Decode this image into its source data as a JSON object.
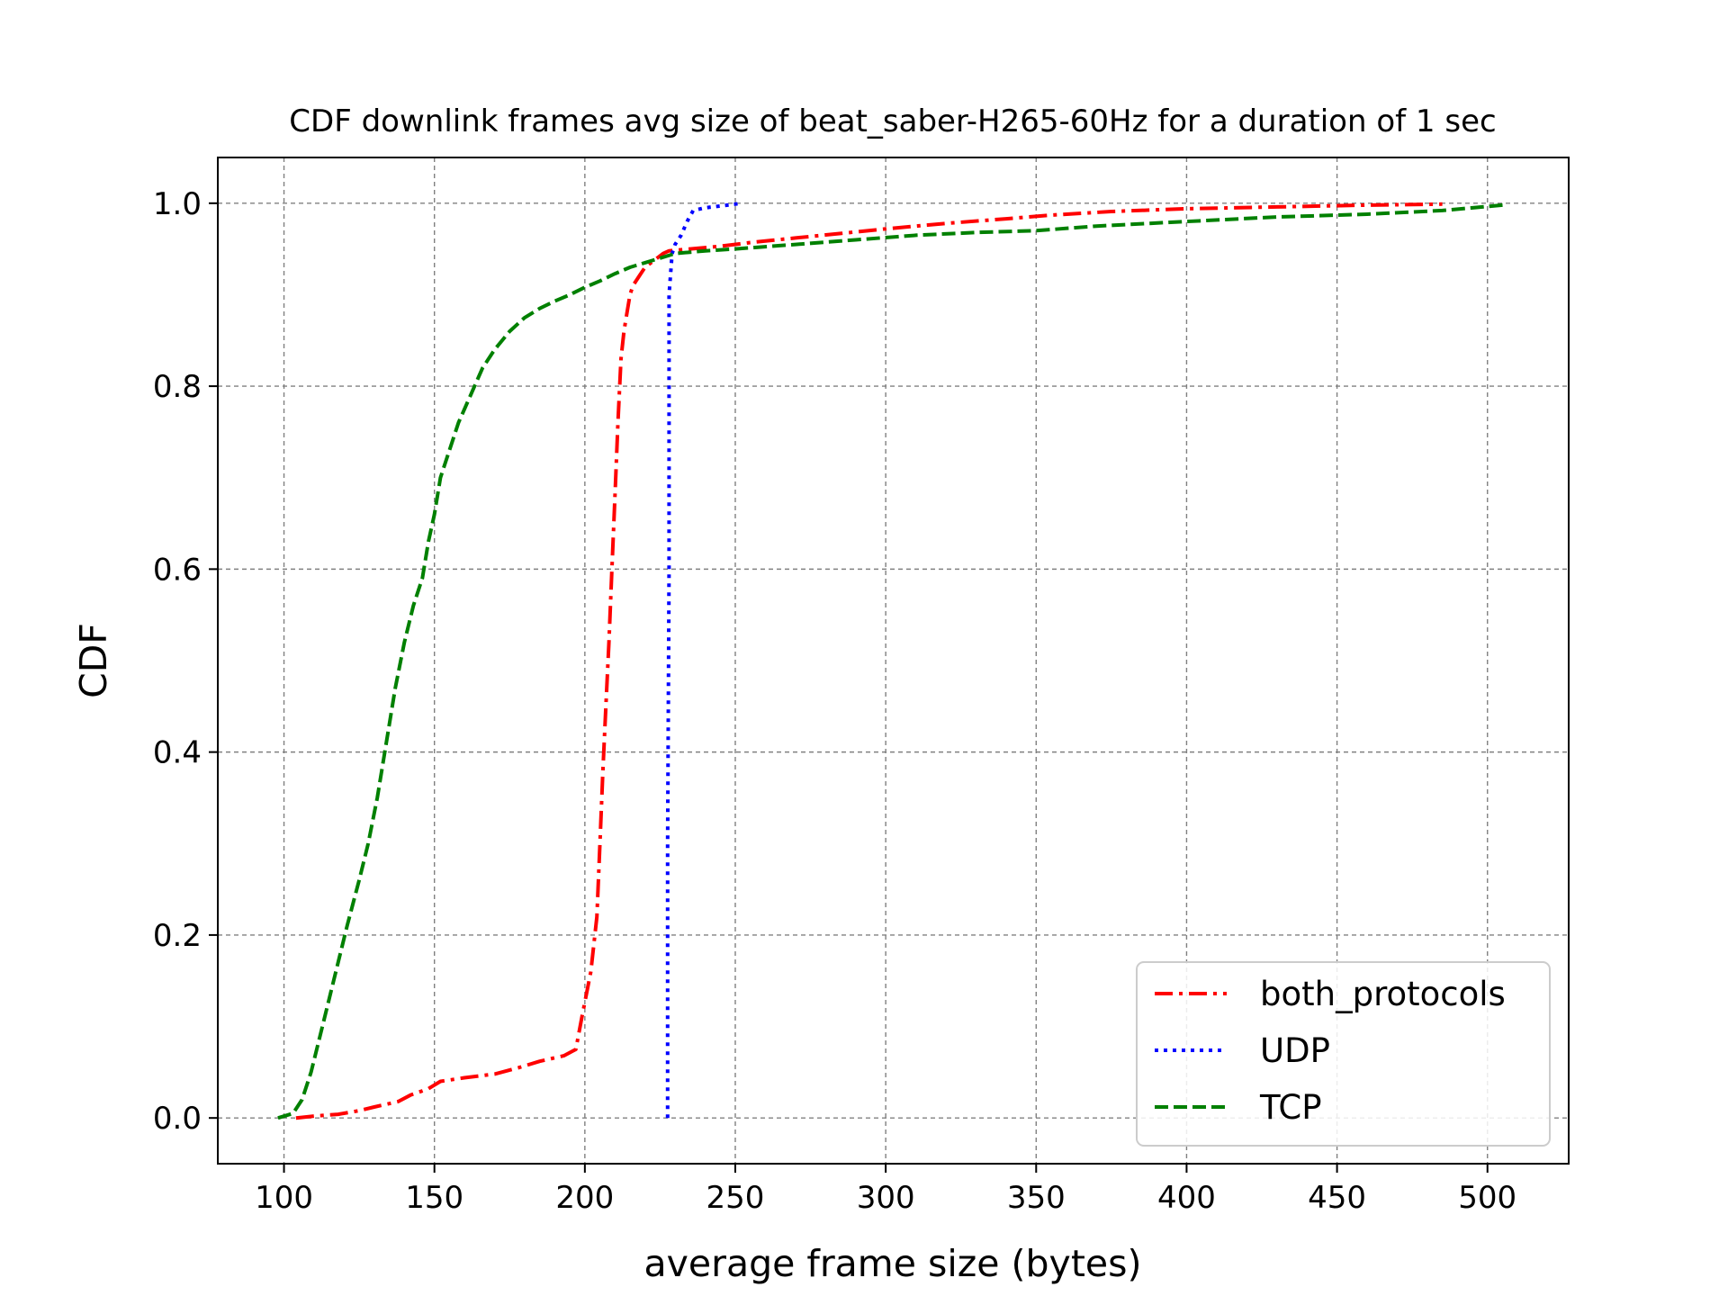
{
  "chart_data": {
    "type": "line",
    "title": "CDF downlink frames avg size of beat_saber-H265-60Hz for a duration of 1 sec",
    "xlabel": "average frame size (bytes)",
    "ylabel": "CDF",
    "xlim": [
      78,
      527
    ],
    "ylim": [
      -0.05,
      1.05
    ],
    "xticks": [
      100,
      150,
      200,
      250,
      300,
      350,
      400,
      450,
      500
    ],
    "yticks": [
      0.0,
      0.2,
      0.4,
      0.6,
      0.8,
      1.0
    ],
    "xtick_labels": [
      "100",
      "150",
      "200",
      "250",
      "300",
      "350",
      "400",
      "450",
      "500"
    ],
    "ytick_labels": [
      "0.0",
      "0.2",
      "0.4",
      "0.6",
      "0.8",
      "1.0"
    ],
    "grid": true,
    "legend_position": "bottom-right",
    "series": [
      {
        "name": "both_protocols",
        "color": "#ff0000",
        "style": "dashdot",
        "x": [
          104,
          110,
          118,
          125,
          130,
          138,
          142,
          148,
          152,
          160,
          170,
          178,
          185,
          193,
          197,
          199,
          202,
          204,
          205,
          206,
          207,
          208,
          209,
          210,
          211,
          212,
          213,
          214,
          215,
          216,
          218,
          220,
          222,
          224,
          226,
          228,
          235,
          245,
          255,
          270,
          285,
          300,
          320,
          340,
          355,
          375,
          400,
          430,
          460,
          485
        ],
        "y": [
          0.0,
          0.002,
          0.004,
          0.008,
          0.012,
          0.018,
          0.025,
          0.032,
          0.04,
          0.044,
          0.048,
          0.055,
          0.062,
          0.068,
          0.075,
          0.11,
          0.16,
          0.22,
          0.3,
          0.38,
          0.45,
          0.52,
          0.6,
          0.68,
          0.76,
          0.83,
          0.86,
          0.88,
          0.9,
          0.91,
          0.92,
          0.93,
          0.935,
          0.94,
          0.945,
          0.948,
          0.95,
          0.953,
          0.957,
          0.962,
          0.967,
          0.972,
          0.978,
          0.983,
          0.987,
          0.991,
          0.994,
          0.996,
          0.998,
          0.999
        ]
      },
      {
        "name": "UDP",
        "color": "#0000ff",
        "style": "dotted",
        "x": [
          227.5,
          227.5,
          228,
          228,
          229,
          230,
          232,
          234,
          236,
          240,
          245,
          250,
          252
        ],
        "y": [
          0.0,
          0.3,
          0.6,
          0.9,
          0.945,
          0.955,
          0.965,
          0.98,
          0.992,
          0.995,
          0.997,
          0.999,
          1.0
        ]
      },
      {
        "name": "TCP",
        "color": "#008000",
        "style": "dashed",
        "x": [
          98,
          103,
          106,
          109,
          112,
          115,
          118,
          121,
          125,
          128,
          131,
          134,
          137,
          140,
          143,
          146,
          148,
          150,
          152,
          155,
          158,
          162,
          166,
          170,
          175,
          180,
          185,
          190,
          195,
          200,
          205,
          210,
          215,
          220,
          225,
          230,
          240,
          250,
          270,
          290,
          310,
          330,
          350,
          370,
          400,
          430,
          460,
          485,
          505
        ],
        "y": [
          0.0,
          0.005,
          0.02,
          0.05,
          0.09,
          0.13,
          0.17,
          0.21,
          0.26,
          0.3,
          0.35,
          0.41,
          0.47,
          0.52,
          0.56,
          0.59,
          0.63,
          0.66,
          0.7,
          0.73,
          0.76,
          0.79,
          0.82,
          0.84,
          0.86,
          0.875,
          0.885,
          0.893,
          0.9,
          0.908,
          0.915,
          0.923,
          0.93,
          0.935,
          0.94,
          0.945,
          0.948,
          0.95,
          0.955,
          0.96,
          0.965,
          0.968,
          0.97,
          0.975,
          0.98,
          0.985,
          0.988,
          0.992,
          0.998
        ]
      }
    ]
  }
}
